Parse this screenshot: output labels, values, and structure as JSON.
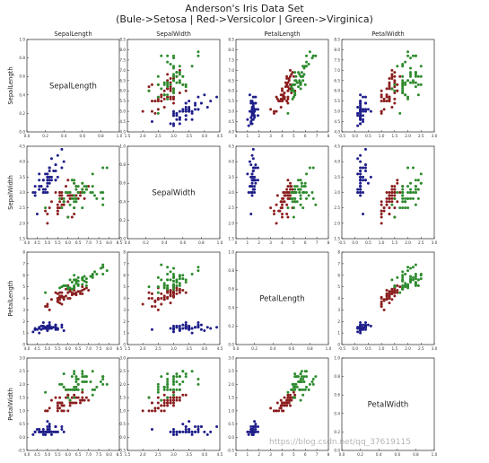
{
  "title": "Anderson's Iris Data Set",
  "subtitle": "(Bule->Setosa | Red->Versicolor | Green->Virginica)",
  "watermark": "https://blog.csdn.net/qq_37619115",
  "colors": {
    "setosa": "#1f1f8a",
    "versicolor": "#8b1f1f",
    "virginica": "#2e8b2e"
  },
  "chart_data": {
    "type": "scatter",
    "title": "Anderson's Iris Data Set",
    "subtitle": "(Bule->Setosa | Red->Versicolor | Green->Virginica)",
    "features": [
      "SepalLength",
      "SepalWidth",
      "PetalLength",
      "PetalWidth"
    ],
    "axes": {
      "SepalLength": {
        "lim": [
          4.0,
          8.5
        ],
        "ticks": [
          "4.0",
          "4.5",
          "5.0",
          "5.5",
          "6.0",
          "6.5",
          "7.0",
          "7.5",
          "8.0",
          "8.5"
        ]
      },
      "SepalWidth": {
        "lim": [
          1.5,
          4.5
        ],
        "ticks": [
          "1.5",
          "2.0",
          "2.5",
          "3.0",
          "3.5",
          "4.0",
          "4.5"
        ]
      },
      "PetalLength": {
        "lim": [
          0,
          8
        ],
        "ticks": [
          "0",
          "1",
          "2",
          "3",
          "4",
          "5",
          "6",
          "7",
          "8"
        ]
      },
      "PetalWidth": {
        "lim": [
          -0.5,
          3.0
        ],
        "ticks": [
          "-0.5",
          "0.0",
          "0.5",
          "1.0",
          "1.5",
          "2.0",
          "2.5",
          "3.0"
        ]
      }
    },
    "diag_axis": {
      "lim": [
        0.0,
        1.0
      ],
      "ticks": [
        "0.0",
        "0.2",
        "0.4",
        "0.6",
        "0.8",
        "1.0"
      ]
    },
    "series": [
      {
        "name": "Setosa",
        "color": "#1f1f8a",
        "points": [
          [
            5.1,
            3.5,
            1.4,
            0.2
          ],
          [
            4.9,
            3.0,
            1.4,
            0.2
          ],
          [
            4.7,
            3.2,
            1.3,
            0.2
          ],
          [
            4.6,
            3.1,
            1.5,
            0.2
          ],
          [
            5.0,
            3.6,
            1.4,
            0.2
          ],
          [
            5.4,
            3.9,
            1.7,
            0.4
          ],
          [
            4.6,
            3.4,
            1.4,
            0.3
          ],
          [
            5.0,
            3.4,
            1.5,
            0.2
          ],
          [
            4.4,
            2.9,
            1.4,
            0.2
          ],
          [
            4.9,
            3.1,
            1.5,
            0.1
          ],
          [
            5.4,
            3.7,
            1.5,
            0.2
          ],
          [
            4.8,
            3.4,
            1.6,
            0.2
          ],
          [
            4.8,
            3.0,
            1.4,
            0.1
          ],
          [
            4.3,
            3.0,
            1.1,
            0.1
          ],
          [
            5.8,
            4.0,
            1.2,
            0.2
          ],
          [
            5.7,
            4.4,
            1.5,
            0.4
          ],
          [
            5.4,
            3.9,
            1.3,
            0.4
          ],
          [
            5.1,
            3.5,
            1.4,
            0.3
          ],
          [
            5.7,
            3.8,
            1.7,
            0.3
          ],
          [
            5.1,
            3.8,
            1.5,
            0.3
          ],
          [
            5.4,
            3.4,
            1.7,
            0.2
          ],
          [
            5.1,
            3.7,
            1.5,
            0.4
          ],
          [
            4.6,
            3.6,
            1.0,
            0.2
          ],
          [
            5.1,
            3.3,
            1.7,
            0.5
          ],
          [
            4.8,
            3.4,
            1.9,
            0.2
          ],
          [
            5.0,
            3.0,
            1.6,
            0.2
          ],
          [
            5.0,
            3.4,
            1.6,
            0.4
          ],
          [
            5.2,
            3.5,
            1.5,
            0.2
          ],
          [
            5.2,
            3.4,
            1.4,
            0.2
          ],
          [
            4.7,
            3.2,
            1.6,
            0.2
          ],
          [
            4.8,
            3.1,
            1.6,
            0.2
          ],
          [
            5.4,
            3.4,
            1.5,
            0.4
          ],
          [
            5.2,
            4.1,
            1.5,
            0.1
          ],
          [
            5.5,
            4.2,
            1.4,
            0.2
          ],
          [
            4.9,
            3.1,
            1.5,
            0.2
          ],
          [
            5.0,
            3.2,
            1.2,
            0.2
          ],
          [
            5.5,
            3.5,
            1.3,
            0.2
          ],
          [
            4.9,
            3.6,
            1.4,
            0.1
          ],
          [
            4.4,
            3.0,
            1.3,
            0.2
          ],
          [
            5.1,
            3.4,
            1.5,
            0.2
          ],
          [
            5.0,
            3.5,
            1.3,
            0.3
          ],
          [
            4.5,
            2.3,
            1.3,
            0.3
          ],
          [
            4.4,
            3.2,
            1.3,
            0.2
          ],
          [
            5.0,
            3.5,
            1.6,
            0.6
          ],
          [
            5.1,
            3.8,
            1.9,
            0.4
          ],
          [
            4.8,
            3.0,
            1.4,
            0.3
          ],
          [
            5.1,
            3.8,
            1.6,
            0.2
          ],
          [
            4.6,
            3.2,
            1.4,
            0.2
          ],
          [
            5.3,
            3.7,
            1.5,
            0.2
          ],
          [
            5.0,
            3.3,
            1.4,
            0.2
          ]
        ]
      },
      {
        "name": "Versicolor",
        "color": "#8b1f1f",
        "points": [
          [
            7.0,
            3.2,
            4.7,
            1.4
          ],
          [
            6.4,
            3.2,
            4.5,
            1.5
          ],
          [
            6.9,
            3.1,
            4.9,
            1.5
          ],
          [
            5.5,
            2.3,
            4.0,
            1.3
          ],
          [
            6.5,
            2.8,
            4.6,
            1.5
          ],
          [
            5.7,
            2.8,
            4.5,
            1.3
          ],
          [
            6.3,
            3.3,
            4.7,
            1.6
          ],
          [
            4.9,
            2.4,
            3.3,
            1.0
          ],
          [
            6.6,
            2.9,
            4.6,
            1.3
          ],
          [
            5.2,
            2.7,
            3.9,
            1.4
          ],
          [
            5.0,
            2.0,
            3.5,
            1.0
          ],
          [
            5.9,
            3.0,
            4.2,
            1.5
          ],
          [
            6.0,
            2.2,
            4.0,
            1.0
          ],
          [
            6.1,
            2.9,
            4.7,
            1.4
          ],
          [
            5.6,
            2.9,
            3.6,
            1.3
          ],
          [
            6.7,
            3.1,
            4.4,
            1.4
          ],
          [
            5.6,
            3.0,
            4.5,
            1.5
          ],
          [
            5.8,
            2.7,
            4.1,
            1.0
          ],
          [
            6.2,
            2.2,
            4.5,
            1.5
          ],
          [
            5.6,
            2.5,
            3.9,
            1.1
          ],
          [
            5.9,
            3.2,
            4.8,
            1.8
          ],
          [
            6.1,
            2.8,
            4.0,
            1.3
          ],
          [
            6.3,
            2.5,
            4.9,
            1.5
          ],
          [
            6.1,
            2.8,
            4.7,
            1.2
          ],
          [
            6.4,
            2.9,
            4.3,
            1.3
          ],
          [
            6.6,
            3.0,
            4.4,
            1.4
          ],
          [
            6.8,
            2.8,
            4.8,
            1.4
          ],
          [
            6.7,
            3.0,
            5.0,
            1.7
          ],
          [
            6.0,
            2.9,
            4.5,
            1.5
          ],
          [
            5.7,
            2.6,
            3.5,
            1.0
          ],
          [
            5.5,
            2.4,
            3.8,
            1.1
          ],
          [
            5.5,
            2.4,
            3.7,
            1.0
          ],
          [
            5.8,
            2.7,
            3.9,
            1.2
          ],
          [
            6.0,
            2.7,
            5.1,
            1.6
          ],
          [
            5.4,
            3.0,
            4.5,
            1.5
          ],
          [
            6.0,
            3.4,
            4.5,
            1.6
          ],
          [
            6.7,
            3.1,
            4.7,
            1.5
          ],
          [
            6.3,
            2.3,
            4.4,
            1.3
          ],
          [
            5.6,
            3.0,
            4.1,
            1.3
          ],
          [
            5.5,
            2.5,
            4.0,
            1.3
          ],
          [
            5.5,
            2.6,
            4.4,
            1.2
          ],
          [
            6.1,
            3.0,
            4.6,
            1.4
          ],
          [
            5.8,
            2.6,
            4.0,
            1.2
          ],
          [
            5.0,
            2.3,
            3.3,
            1.0
          ],
          [
            5.6,
            2.7,
            4.2,
            1.3
          ],
          [
            5.7,
            3.0,
            4.2,
            1.2
          ],
          [
            5.7,
            2.9,
            4.2,
            1.3
          ],
          [
            6.2,
            2.9,
            4.3,
            1.3
          ],
          [
            5.1,
            2.5,
            3.0,
            1.1
          ],
          [
            5.7,
            2.8,
            4.1,
            1.3
          ]
        ]
      },
      {
        "name": "Virginica",
        "color": "#2e8b2e",
        "points": [
          [
            6.3,
            3.3,
            6.0,
            2.5
          ],
          [
            5.8,
            2.7,
            5.1,
            1.9
          ],
          [
            7.1,
            3.0,
            5.9,
            2.1
          ],
          [
            6.3,
            2.9,
            5.6,
            1.8
          ],
          [
            6.5,
            3.0,
            5.8,
            2.2
          ],
          [
            7.6,
            3.0,
            6.6,
            2.1
          ],
          [
            4.9,
            2.5,
            4.5,
            1.7
          ],
          [
            7.3,
            2.9,
            6.3,
            1.8
          ],
          [
            6.7,
            2.5,
            5.8,
            1.8
          ],
          [
            7.2,
            3.6,
            6.1,
            2.5
          ],
          [
            6.5,
            3.2,
            5.1,
            2.0
          ],
          [
            6.4,
            2.7,
            5.3,
            1.9
          ],
          [
            6.8,
            3.0,
            5.5,
            2.1
          ],
          [
            5.7,
            2.5,
            5.0,
            2.0
          ],
          [
            5.8,
            2.8,
            5.1,
            2.4
          ],
          [
            6.4,
            3.2,
            5.3,
            2.3
          ],
          [
            6.5,
            3.0,
            5.5,
            1.8
          ],
          [
            7.7,
            3.8,
            6.7,
            2.2
          ],
          [
            7.7,
            2.6,
            6.9,
            2.3
          ],
          [
            6.0,
            2.2,
            5.0,
            1.5
          ],
          [
            6.9,
            3.2,
            5.7,
            2.3
          ],
          [
            5.6,
            2.8,
            4.9,
            2.0
          ],
          [
            7.7,
            2.8,
            6.7,
            2.0
          ],
          [
            6.3,
            2.7,
            4.9,
            1.8
          ],
          [
            6.7,
            3.3,
            5.7,
            2.1
          ],
          [
            7.2,
            3.2,
            6.0,
            1.8
          ],
          [
            6.2,
            2.8,
            4.8,
            1.8
          ],
          [
            6.1,
            3.0,
            4.9,
            1.8
          ],
          [
            6.4,
            2.8,
            5.6,
            2.1
          ],
          [
            7.2,
            3.0,
            5.8,
            1.6
          ],
          [
            7.4,
            2.8,
            6.1,
            1.9
          ],
          [
            7.9,
            3.8,
            6.4,
            2.0
          ],
          [
            6.4,
            2.8,
            5.6,
            2.2
          ],
          [
            6.3,
            2.8,
            5.1,
            1.5
          ],
          [
            6.1,
            2.6,
            5.6,
            1.4
          ],
          [
            7.7,
            3.0,
            6.1,
            2.3
          ],
          [
            6.3,
            3.4,
            5.6,
            2.4
          ],
          [
            6.4,
            3.1,
            5.5,
            1.8
          ],
          [
            6.0,
            3.0,
            4.8,
            1.8
          ],
          [
            6.9,
            3.1,
            5.4,
            2.1
          ],
          [
            6.7,
            3.1,
            5.6,
            2.4
          ],
          [
            6.9,
            3.1,
            5.1,
            2.3
          ],
          [
            5.8,
            2.7,
            5.1,
            1.9
          ],
          [
            6.8,
            3.2,
            5.9,
            2.3
          ],
          [
            6.7,
            3.3,
            5.7,
            2.5
          ],
          [
            6.7,
            3.0,
            5.2,
            2.3
          ],
          [
            6.3,
            2.5,
            5.0,
            1.9
          ],
          [
            6.5,
            3.0,
            5.2,
            2.0
          ],
          [
            6.2,
            3.4,
            5.4,
            2.3
          ],
          [
            5.9,
            3.0,
            5.1,
            1.8
          ]
        ]
      }
    ]
  }
}
